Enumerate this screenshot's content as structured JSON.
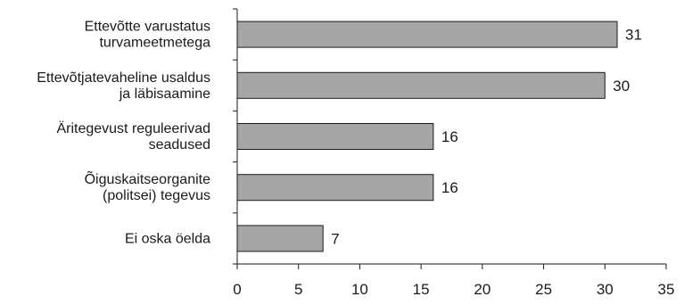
{
  "chart_data": {
    "type": "bar",
    "orientation": "horizontal",
    "categories": [
      [
        "Ettevõtte varustatus",
        "turvameetmetega"
      ],
      [
        "Ettevõtjatevaheline usaldus",
        "ja läbisaamine"
      ],
      [
        "Äritegevust reguleerivad",
        "seadused"
      ],
      [
        "Õiguskaitseorganite",
        "(politsei) tegevus"
      ],
      [
        "Ei oska öelda"
      ]
    ],
    "values": [
      31,
      30,
      16,
      16,
      7
    ],
    "data_labels": [
      "31",
      "30",
      "16",
      "16",
      "7"
    ],
    "xlim": [
      0,
      35
    ],
    "x_ticks": [
      0,
      5,
      10,
      15,
      20,
      25,
      30,
      35
    ],
    "x_tick_labels": [
      "0",
      "5",
      "10",
      "15",
      "20",
      "25",
      "30",
      "35"
    ],
    "title": "",
    "xlabel": "",
    "ylabel": "",
    "grid": false,
    "legend": "none",
    "bar_color": "#a6a6a6",
    "bar_edge_color": "#1a1a1a",
    "axis_color": "#1a1a1a"
  }
}
